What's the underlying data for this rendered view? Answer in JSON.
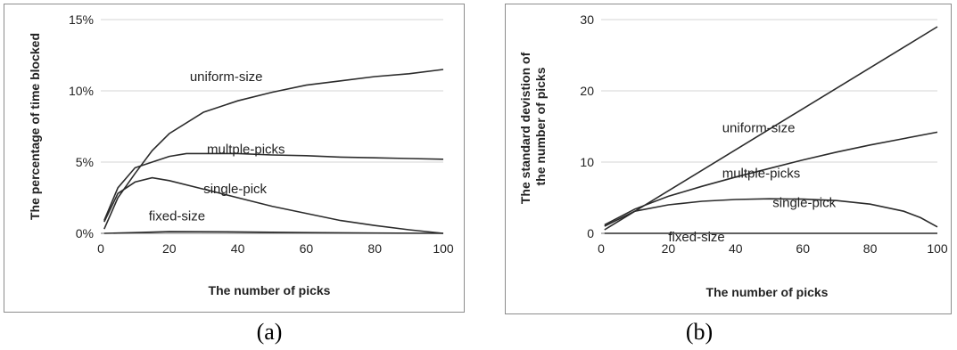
{
  "chart_data": [
    {
      "type": "line",
      "panel_label": "(a)",
      "xlabel": "The number of picks",
      "ylabel": "The percentage of time blocked",
      "xlim": [
        0,
        100
      ],
      "ylim": [
        0,
        15
      ],
      "x_ticks": [
        0,
        20,
        40,
        60,
        80,
        100
      ],
      "y_ticks": [
        0,
        5,
        10,
        15
      ],
      "y_tick_labels": [
        "0%",
        "5%",
        "10%",
        "15%"
      ],
      "grid": "horizontal",
      "series": [
        {
          "name": "uniform-size",
          "label_at": [
            26,
            10.7
          ],
          "x": [
            1,
            5,
            10,
            15,
            20,
            30,
            40,
            50,
            60,
            70,
            80,
            90,
            100
          ],
          "y": [
            0.3,
            2.5,
            4.2,
            5.8,
            7.0,
            8.5,
            9.3,
            9.9,
            10.4,
            10.7,
            11.0,
            11.2,
            11.5
          ]
        },
        {
          "name": "multple-picks",
          "label_at": [
            31,
            5.6
          ],
          "x": [
            1,
            5,
            10,
            15,
            20,
            25,
            30,
            40,
            50,
            60,
            70,
            80,
            90,
            100
          ],
          "y": [
            0.9,
            3.2,
            4.6,
            5.0,
            5.4,
            5.6,
            5.6,
            5.6,
            5.5,
            5.45,
            5.35,
            5.3,
            5.25,
            5.2
          ]
        },
        {
          "name": "single-pick",
          "label_at": [
            30,
            2.8
          ],
          "x": [
            1,
            5,
            10,
            15,
            20,
            30,
            40,
            50,
            60,
            70,
            80,
            90,
            100
          ],
          "y": [
            0.8,
            2.8,
            3.6,
            3.9,
            3.7,
            3.1,
            2.5,
            1.9,
            1.4,
            0.9,
            0.55,
            0.25,
            0
          ]
        },
        {
          "name": "fixed-size",
          "label_at": [
            14,
            0.9
          ],
          "x": [
            1,
            10,
            20,
            40,
            60,
            80,
            100
          ],
          "y": [
            0,
            0.05,
            0.12,
            0.1,
            0.05,
            0.02,
            0
          ]
        }
      ]
    },
    {
      "type": "line",
      "panel_label": "(b)",
      "xlabel": "The number of picks",
      "ylabel": "The standard devistion of the number of picks",
      "ylabel_lines": [
        "The standard devistion of",
        "the  number of picks"
      ],
      "xlim": [
        0,
        100
      ],
      "ylim": [
        0,
        30
      ],
      "x_ticks": [
        0,
        20,
        40,
        60,
        80,
        100
      ],
      "y_ticks": [
        0,
        10,
        20,
        30
      ],
      "y_tick_labels": [
        "0",
        "10",
        "20",
        "30"
      ],
      "grid": "horizontal",
      "series": [
        {
          "name": "uniform-size",
          "label_at": [
            36,
            14.2
          ],
          "x": [
            1,
            100
          ],
          "y": [
            0.5,
            29
          ]
        },
        {
          "name": "multple-picks",
          "label_at": [
            36,
            7.8
          ],
          "x": [
            1,
            10,
            20,
            30,
            40,
            50,
            60,
            70,
            80,
            90,
            100
          ],
          "y": [
            1.2,
            3.4,
            5.2,
            6.6,
            7.9,
            9.1,
            10.3,
            11.4,
            12.4,
            13.3,
            14.2
          ]
        },
        {
          "name": "single-pick",
          "label_at": [
            51,
            3.7
          ],
          "x": [
            1,
            10,
            20,
            30,
            40,
            50,
            60,
            70,
            80,
            90,
            95,
            100
          ],
          "y": [
            1.0,
            3.1,
            4.0,
            4.5,
            4.75,
            4.85,
            4.8,
            4.6,
            4.1,
            3.1,
            2.2,
            0.9
          ]
        },
        {
          "name": "fixed-size",
          "label_at": [
            20,
            -1.1
          ],
          "x": [
            1,
            100
          ],
          "y": [
            0,
            0
          ]
        }
      ]
    }
  ]
}
